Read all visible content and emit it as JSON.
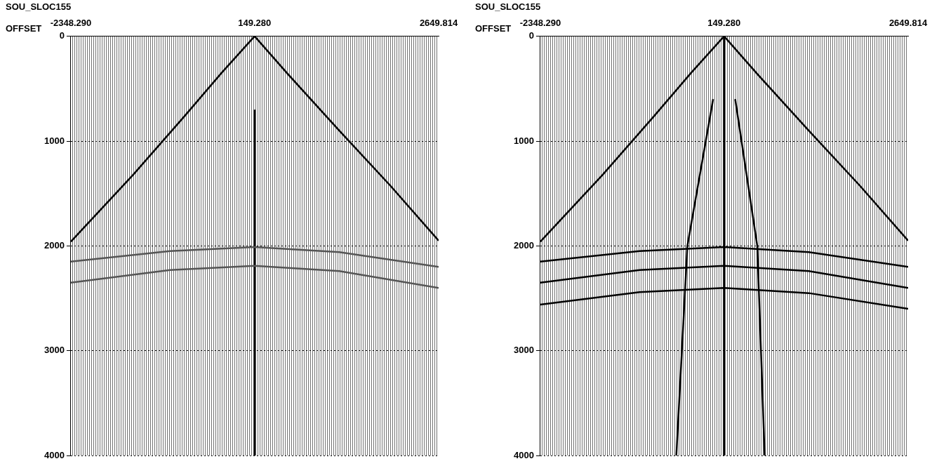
{
  "chart_data": [
    {
      "type": "line",
      "title": "SOU_SLOC155",
      "xlabel": "OFFSET",
      "xlim": [
        -2348.29,
        2649.814
      ],
      "xticks": [
        {
          "value": -2348.29,
          "label": "-2348.290"
        },
        {
          "value": 149.28,
          "label": "149.280"
        },
        2649.814
      ],
      "ylim": [
        0,
        4000
      ],
      "yticks": [
        0,
        1000,
        2000,
        3000,
        4000
      ],
      "grid": true,
      "series": [
        {
          "color": "#000000",
          "x": [
            -2348.29,
            -1500,
            -800,
            -300,
            149.28,
            600,
            1300,
            2000,
            2649.814
          ],
          "values": [
            1960,
            1320,
            760,
            350,
            0,
            360,
            900,
            1430,
            1950
          ]
        },
        {
          "color": "#555555",
          "x": [
            -2348.29,
            -1000,
            149.28,
            1300,
            2649.814
          ],
          "values": [
            2150,
            2050,
            2010,
            2060,
            2200
          ]
        },
        {
          "color": "#555555",
          "x": [
            -2348.29,
            -1000,
            149.28,
            1300,
            2649.814
          ],
          "values": [
            2350,
            2230,
            2190,
            2240,
            2400
          ]
        },
        {
          "color": "#000000",
          "x": [
            149.28,
            149.28
          ],
          "values": [
            700,
            4000
          ]
        }
      ]
    },
    {
      "type": "line",
      "title": "SOU_SLOC155",
      "xlabel": "OFFSET",
      "xlim": [
        -2348.29,
        2649.814
      ],
      "xticks": [
        {
          "value": -2348.29,
          "label": "-2348.290"
        },
        {
          "value": 149.28,
          "label": "149.280"
        },
        2649.814
      ],
      "ylim": [
        0,
        4000
      ],
      "yticks": [
        0,
        1000,
        2000,
        3000,
        4000
      ],
      "grid": true,
      "series": [
        {
          "color": "#000000",
          "x": [
            -2348.29,
            -1500,
            -800,
            -300,
            149.28,
            600,
            1300,
            2000,
            2649.814
          ],
          "values": [
            1960,
            1320,
            760,
            350,
            0,
            360,
            900,
            1430,
            1950
          ]
        },
        {
          "color": "#000000",
          "x": [
            -2348.29,
            -1000,
            149.28,
            1300,
            2649.814
          ],
          "values": [
            2150,
            2050,
            2010,
            2060,
            2200
          ]
        },
        {
          "color": "#000000",
          "x": [
            -2348.29,
            -1000,
            149.28,
            1300,
            2649.814
          ],
          "values": [
            2350,
            2230,
            2190,
            2240,
            2400
          ]
        },
        {
          "color": "#000000",
          "x": [
            -2348.29,
            -1000,
            149.28,
            1300,
            2649.814
          ],
          "values": [
            2560,
            2440,
            2400,
            2450,
            2600
          ]
        },
        {
          "color": "#000000",
          "x": [
            149.28,
            149.28
          ],
          "values": [
            0,
            4000
          ]
        },
        {
          "color": "#000000",
          "x": [
            0,
            -350,
            -500
          ],
          "values": [
            600,
            2000,
            4000
          ]
        },
        {
          "color": "#000000",
          "x": [
            300,
            600,
            700
          ],
          "values": [
            600,
            2000,
            4000
          ]
        }
      ]
    }
  ]
}
